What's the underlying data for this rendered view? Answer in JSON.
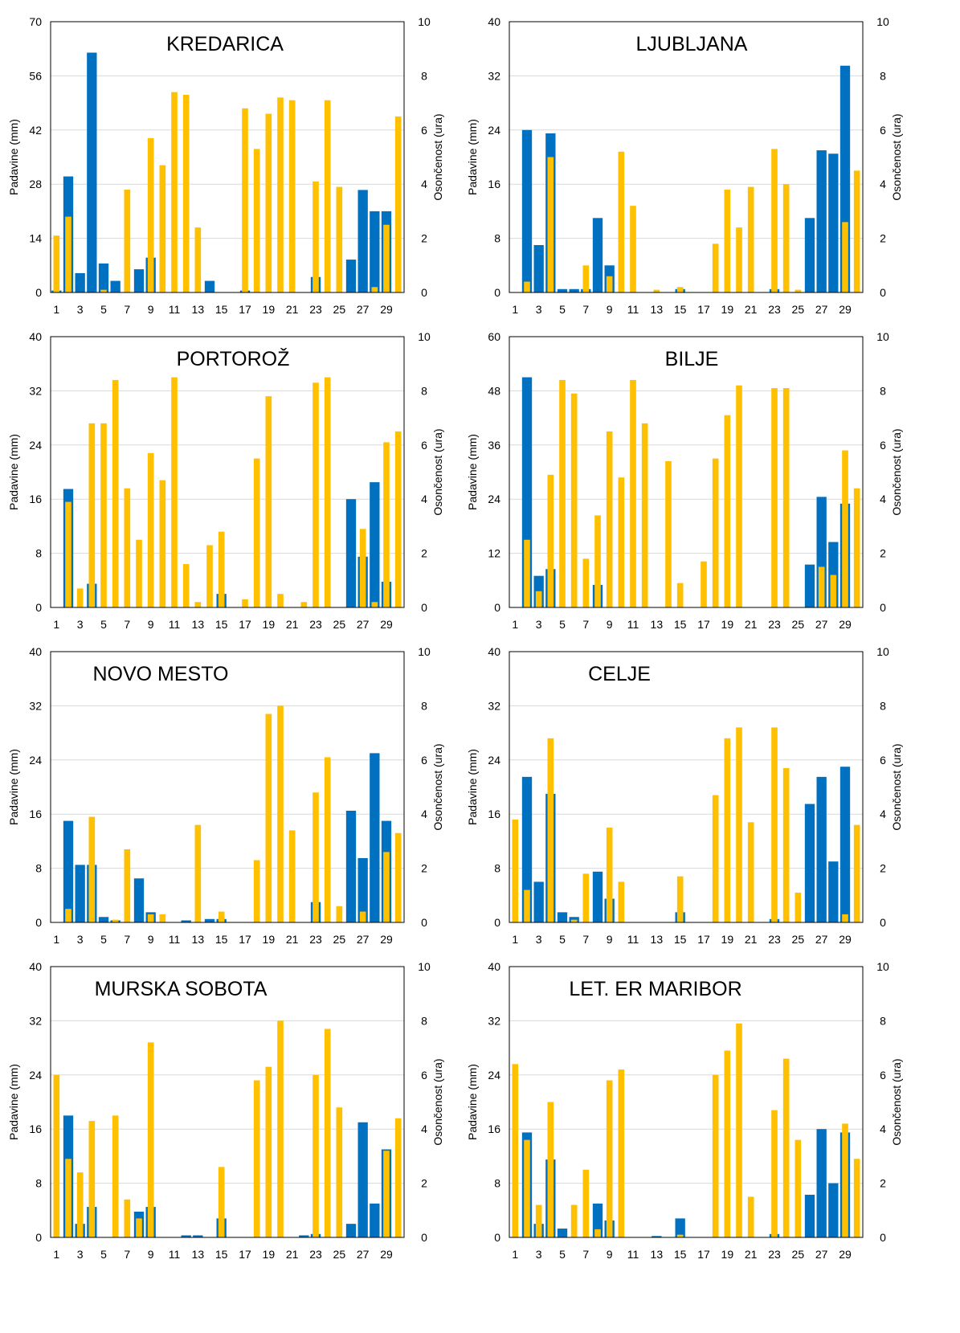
{
  "colors": {
    "precip": "#0070C0",
    "sun": "#FFC000",
    "grid": "#D9D9D9",
    "frame": "#000000"
  },
  "x_tick_labels": [
    "1",
    "3",
    "5",
    "7",
    "9",
    "11",
    "13",
    "15",
    "17",
    "19",
    "21",
    "23",
    "25",
    "27",
    "29"
  ],
  "chart_data": [
    {
      "type": "bar",
      "title": "KREDARICA",
      "ylabel": "Padavine (mm)",
      "y2label": "Osončenost (ura)",
      "ylim": [
        0,
        70
      ],
      "yticks": [
        "0",
        "14",
        "28",
        "42",
        "56",
        "70"
      ],
      "y2lim": [
        0,
        10
      ],
      "y2ticks": [
        "0",
        "2",
        "4",
        "6",
        "8",
        "10"
      ],
      "grid": true,
      "x": [
        1,
        2,
        3,
        4,
        5,
        6,
        7,
        8,
        9,
        10,
        11,
        12,
        13,
        14,
        15,
        16,
        17,
        18,
        19,
        20,
        21,
        22,
        23,
        24,
        25,
        26,
        27,
        28,
        29,
        30
      ],
      "series": [
        {
          "name": "Padavine (mm)",
          "axis": "left",
          "values": [
            0.5,
            30,
            5,
            62,
            7.5,
            3,
            0,
            6,
            9,
            0,
            0,
            0,
            0,
            3,
            0,
            0,
            0.5,
            0,
            0,
            0,
            0,
            0,
            4,
            0,
            0,
            8.5,
            26.5,
            21,
            21,
            0
          ]
        },
        {
          "name": "Osončenost (ura)",
          "axis": "right",
          "values": [
            2.1,
            2.8,
            0,
            0,
            0.1,
            0,
            3.8,
            0,
            5.7,
            4.7,
            7.4,
            7.3,
            2.4,
            0,
            0,
            0,
            6.8,
            5.3,
            6.6,
            7.2,
            7.1,
            0,
            4.1,
            7.1,
            3.9,
            0,
            0,
            0.2,
            2.5,
            6.5
          ]
        }
      ]
    },
    {
      "type": "bar",
      "title": "LJUBLJANA",
      "ylabel": "Padavine (mm)",
      "y2label": "Osončenost (ura)",
      "ylim": [
        0,
        40
      ],
      "yticks": [
        "0",
        "8",
        "16",
        "24",
        "32",
        "40"
      ],
      "y2lim": [
        0,
        10
      ],
      "y2ticks": [
        "0",
        "2",
        "4",
        "6",
        "8",
        "10"
      ],
      "grid": true,
      "x": [
        1,
        2,
        3,
        4,
        5,
        6,
        7,
        8,
        9,
        10,
        11,
        12,
        13,
        14,
        15,
        16,
        17,
        18,
        19,
        20,
        21,
        22,
        23,
        24,
        25,
        26,
        27,
        28,
        29,
        30
      ],
      "series": [
        {
          "name": "Padavine (mm)",
          "axis": "left",
          "values": [
            0,
            24,
            7,
            23.5,
            0.5,
            0.5,
            0.5,
            11,
            4,
            0,
            0,
            0,
            0,
            0,
            0.5,
            0,
            0,
            0,
            0,
            0,
            0,
            0,
            0.5,
            0,
            0,
            11,
            21,
            20.5,
            33.5,
            0
          ]
        },
        {
          "name": "Osončenost (ura)",
          "axis": "right",
          "values": [
            0,
            0.4,
            0,
            5,
            0,
            0,
            1,
            0,
            0.6,
            5.2,
            3.2,
            0,
            0.1,
            0,
            0.2,
            0,
            0,
            1.8,
            3.8,
            2.4,
            3.9,
            0,
            5.3,
            4,
            0.1,
            0,
            0,
            0,
            2.6,
            4.5
          ]
        }
      ]
    },
    {
      "type": "bar",
      "title": "PORTOROŽ",
      "ylabel": "Padavine (mm)",
      "y2label": "Osončenost (ura)",
      "ylim": [
        0,
        40
      ],
      "yticks": [
        "0",
        "8",
        "16",
        "24",
        "32",
        "40"
      ],
      "y2lim": [
        0,
        10
      ],
      "y2ticks": [
        "0",
        "2",
        "4",
        "6",
        "8",
        "10"
      ],
      "grid": true,
      "x": [
        1,
        2,
        3,
        4,
        5,
        6,
        7,
        8,
        9,
        10,
        11,
        12,
        13,
        14,
        15,
        16,
        17,
        18,
        19,
        20,
        21,
        22,
        23,
        24,
        25,
        26,
        27,
        28,
        29,
        30
      ],
      "series": [
        {
          "name": "Padavine (mm)",
          "axis": "left",
          "values": [
            0,
            17.5,
            0,
            3.5,
            0,
            0,
            0,
            0,
            0,
            0,
            0,
            0,
            0,
            0,
            2,
            0,
            0,
            0,
            0,
            0,
            0,
            0,
            0,
            0,
            0,
            16,
            7.5,
            18.5,
            3.8,
            0
          ]
        },
        {
          "name": "Osončenost (ura)",
          "axis": "right",
          "values": [
            0,
            3.9,
            0.7,
            6.8,
            6.8,
            8.4,
            4.4,
            2.5,
            5.7,
            4.7,
            8.5,
            1.6,
            0.2,
            2.3,
            2.8,
            0,
            0.3,
            5.5,
            7.8,
            0.5,
            0,
            0.2,
            8.3,
            8.5,
            0,
            0,
            2.9,
            0.2,
            6.1,
            6.5
          ]
        }
      ]
    },
    {
      "type": "bar",
      "title": "BILJE",
      "ylabel": "Padavine (mm)",
      "y2label": "Osončenost (ura)",
      "ylim": [
        0,
        60
      ],
      "yticks": [
        "0",
        "12",
        "24",
        "36",
        "48",
        "60"
      ],
      "y2lim": [
        0,
        10
      ],
      "y2ticks": [
        "0",
        "2",
        "4",
        "6",
        "8",
        "10"
      ],
      "grid": true,
      "x": [
        1,
        2,
        3,
        4,
        5,
        6,
        7,
        8,
        9,
        10,
        11,
        12,
        13,
        14,
        15,
        16,
        17,
        18,
        19,
        20,
        21,
        22,
        23,
        24,
        25,
        26,
        27,
        28,
        29,
        30
      ],
      "series": [
        {
          "name": "Padavine (mm)",
          "axis": "left",
          "values": [
            0,
            51,
            7,
            8.5,
            0,
            0,
            0,
            5,
            0,
            0,
            0,
            0,
            0,
            0,
            0,
            0,
            0,
            0,
            0,
            0,
            0,
            0,
            0,
            0,
            0,
            9.5,
            24.5,
            14.5,
            23,
            0
          ]
        },
        {
          "name": "Osončenost (ura)",
          "axis": "right",
          "values": [
            0,
            2.5,
            0.6,
            4.9,
            8.4,
            7.9,
            1.8,
            3.4,
            6.5,
            4.8,
            8.4,
            6.8,
            0,
            5.4,
            0.9,
            0,
            1.7,
            5.5,
            7.1,
            8.2,
            0,
            0,
            8.1,
            8.1,
            0,
            0,
            1.5,
            1.2,
            5.8,
            4.4
          ]
        }
      ]
    },
    {
      "type": "bar",
      "title": "NOVO MESTO",
      "ylabel": "Padavine (mm)",
      "y2label": "Osončenost (ura)",
      "ylim": [
        0,
        40
      ],
      "yticks": [
        "0",
        "8",
        "16",
        "24",
        "32",
        "40"
      ],
      "y2lim": [
        0,
        10
      ],
      "y2ticks": [
        "0",
        "2",
        "4",
        "6",
        "8",
        "10"
      ],
      "grid": true,
      "x": [
        1,
        2,
        3,
        4,
        5,
        6,
        7,
        8,
        9,
        10,
        11,
        12,
        13,
        14,
        15,
        16,
        17,
        18,
        19,
        20,
        21,
        22,
        23,
        24,
        25,
        26,
        27,
        28,
        29,
        30
      ],
      "series": [
        {
          "name": "Padavine (mm)",
          "axis": "left",
          "values": [
            0,
            15,
            8.5,
            8.5,
            0.8,
            0.3,
            0,
            6.5,
            1.5,
            0,
            0,
            0.3,
            0,
            0.5,
            0.5,
            0,
            0,
            0,
            0,
            0,
            0,
            0,
            3,
            0,
            0,
            16.5,
            9.5,
            25,
            15,
            0
          ]
        },
        {
          "name": "Osončenost (ura)",
          "axis": "right",
          "values": [
            0,
            0.5,
            0,
            3.9,
            0,
            0.1,
            2.7,
            0,
            0.3,
            0.3,
            0,
            0,
            3.6,
            0,
            0.4,
            0,
            0,
            2.3,
            7.7,
            8,
            3.4,
            0,
            4.8,
            6.1,
            0.6,
            0,
            0.4,
            0,
            2.6,
            3.3
          ]
        }
      ]
    },
    {
      "type": "bar",
      "title": "CELJE",
      "ylabel": "Padavine (mm)",
      "y2label": "Osončenost (ura)",
      "ylim": [
        0,
        40
      ],
      "yticks": [
        "0",
        "8",
        "16",
        "24",
        "32",
        "40"
      ],
      "y2lim": [
        0,
        10
      ],
      "y2ticks": [
        "0",
        "2",
        "4",
        "6",
        "8",
        "10"
      ],
      "grid": true,
      "x": [
        1,
        2,
        3,
        4,
        5,
        6,
        7,
        8,
        9,
        10,
        11,
        12,
        13,
        14,
        15,
        16,
        17,
        18,
        19,
        20,
        21,
        22,
        23,
        24,
        25,
        26,
        27,
        28,
        29,
        30
      ],
      "series": [
        {
          "name": "Padavine (mm)",
          "axis": "left",
          "values": [
            0,
            21.5,
            6,
            19,
            1.5,
            0.8,
            0,
            7.5,
            3.5,
            0,
            0,
            0,
            0,
            0,
            1.5,
            0,
            0,
            0,
            0,
            0,
            0,
            0,
            0.5,
            0,
            0,
            17.5,
            21.5,
            9,
            23,
            0
          ]
        },
        {
          "name": "Osončenost (ura)",
          "axis": "right",
          "values": [
            3.8,
            1.2,
            0,
            6.8,
            0,
            0.1,
            1.8,
            0,
            3.5,
            1.5,
            0,
            0,
            0,
            0,
            1.7,
            0,
            0,
            4.7,
            6.8,
            7.2,
            3.7,
            0,
            7.2,
            5.7,
            1.1,
            0,
            0,
            0,
            0.3,
            3.6
          ]
        }
      ]
    },
    {
      "type": "bar",
      "title": "MURSKA SOBOTA",
      "ylabel": "Padavine (mm)",
      "y2label": "Osončenost (ura)",
      "ylim": [
        0,
        40
      ],
      "yticks": [
        "0",
        "8",
        "16",
        "24",
        "32",
        "40"
      ],
      "y2lim": [
        0,
        10
      ],
      "y2ticks": [
        "0",
        "2",
        "4",
        "6",
        "8",
        "10"
      ],
      "grid": true,
      "x": [
        1,
        2,
        3,
        4,
        5,
        6,
        7,
        8,
        9,
        10,
        11,
        12,
        13,
        14,
        15,
        16,
        17,
        18,
        19,
        20,
        21,
        22,
        23,
        24,
        25,
        26,
        27,
        28,
        29,
        30
      ],
      "series": [
        {
          "name": "Padavine (mm)",
          "axis": "left",
          "values": [
            0,
            18,
            2,
            4.5,
            0,
            0,
            0,
            3.8,
            4.5,
            0,
            0,
            0.3,
            0.3,
            0,
            2.8,
            0,
            0,
            0,
            0,
            0,
            0,
            0.3,
            0.5,
            0,
            0,
            2,
            17,
            5,
            13,
            0
          ]
        },
        {
          "name": "Osončenost (ura)",
          "axis": "right",
          "values": [
            6,
            2.9,
            2.4,
            4.3,
            0,
            4.5,
            1.4,
            0.7,
            7.2,
            0,
            0,
            0,
            0,
            0,
            2.6,
            0,
            0,
            5.8,
            6.3,
            8,
            0,
            0,
            6,
            7.7,
            4.8,
            0,
            0,
            0,
            3.2,
            4.4
          ]
        }
      ]
    },
    {
      "type": "bar",
      "title": "LET. ER MARIBOR",
      "ylabel": "Padavine (mm)",
      "y2label": "Osončenost (ura)",
      "ylim": [
        0,
        40
      ],
      "yticks": [
        "0",
        "8",
        "16",
        "24",
        "32",
        "40"
      ],
      "y2lim": [
        0,
        10
      ],
      "y2ticks": [
        "0",
        "2",
        "4",
        "6",
        "8",
        "10"
      ],
      "grid": true,
      "x": [
        1,
        2,
        3,
        4,
        5,
        6,
        7,
        8,
        9,
        10,
        11,
        12,
        13,
        14,
        15,
        16,
        17,
        18,
        19,
        20,
        21,
        22,
        23,
        24,
        25,
        26,
        27,
        28,
        29,
        30
      ],
      "series": [
        {
          "name": "Padavine (mm)",
          "axis": "left",
          "values": [
            0,
            15.5,
            2,
            11.5,
            1.3,
            0,
            0,
            5,
            2.5,
            0,
            0,
            0,
            0.2,
            0,
            2.8,
            0,
            0,
            0,
            0,
            0,
            0,
            0,
            0.5,
            0,
            0,
            6.3,
            16,
            8,
            15.5,
            0
          ]
        },
        {
          "name": "Osončenost (ura)",
          "axis": "right",
          "values": [
            6.4,
            3.6,
            1.2,
            5,
            0,
            1.2,
            2.5,
            0.3,
            5.8,
            6.2,
            0,
            0,
            0,
            0,
            0.1,
            0,
            0,
            6,
            6.9,
            7.9,
            1.5,
            0,
            4.7,
            6.6,
            3.6,
            0,
            0,
            0,
            4.2,
            2.9
          ]
        }
      ]
    }
  ]
}
